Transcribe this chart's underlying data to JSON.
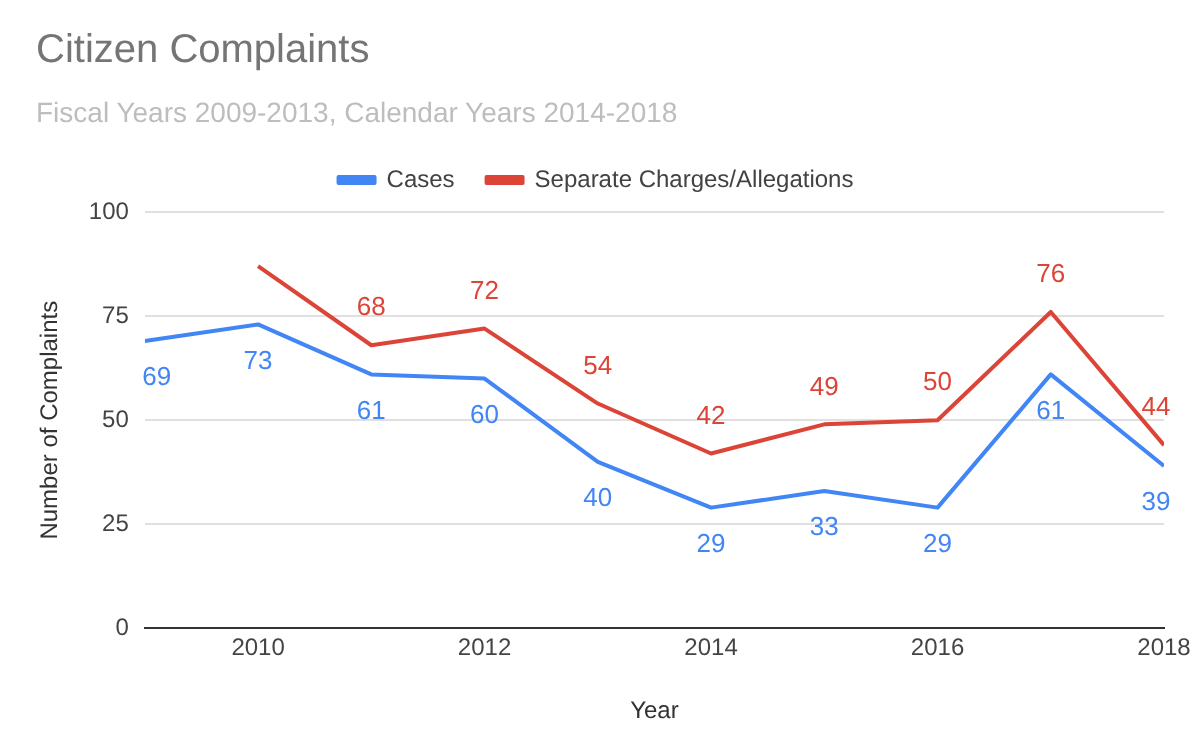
{
  "chart_data": {
    "type": "line",
    "title": "Citizen Complaints",
    "subtitle": "Fiscal Years 2009-2013, Calendar Years 2014-2018",
    "xlabel": "Year",
    "ylabel": "Number of Complaints",
    "x": [
      2009,
      2010,
      2011,
      2012,
      2013,
      2014,
      2015,
      2016,
      2017,
      2018
    ],
    "series": [
      {
        "name": "Cases",
        "color": "#4285f4",
        "values": [
          69,
          73,
          61,
          60,
          40,
          29,
          33,
          29,
          61,
          39
        ],
        "value_labels": [
          "69",
          "73",
          "61",
          "60",
          "40",
          "29",
          "33",
          "29",
          "61",
          "39"
        ]
      },
      {
        "name": "Separate Charges/Allegations",
        "color": "#db4437",
        "values": [
          null,
          87,
          68,
          72,
          54,
          42,
          49,
          50,
          76,
          44
        ],
        "value_labels": [
          null,
          null,
          "68",
          "72",
          "54",
          "42",
          "49",
          "50",
          "76",
          "44"
        ]
      }
    ],
    "xlim": [
      2009,
      2018
    ],
    "xticks": [
      2010,
      2012,
      2014,
      2016,
      2018
    ],
    "ylim": [
      0,
      100
    ],
    "yticks": [
      0,
      25,
      50,
      75,
      100
    ],
    "grid": "y",
    "legend": "top",
    "marker": "none",
    "line_style": "solid"
  }
}
